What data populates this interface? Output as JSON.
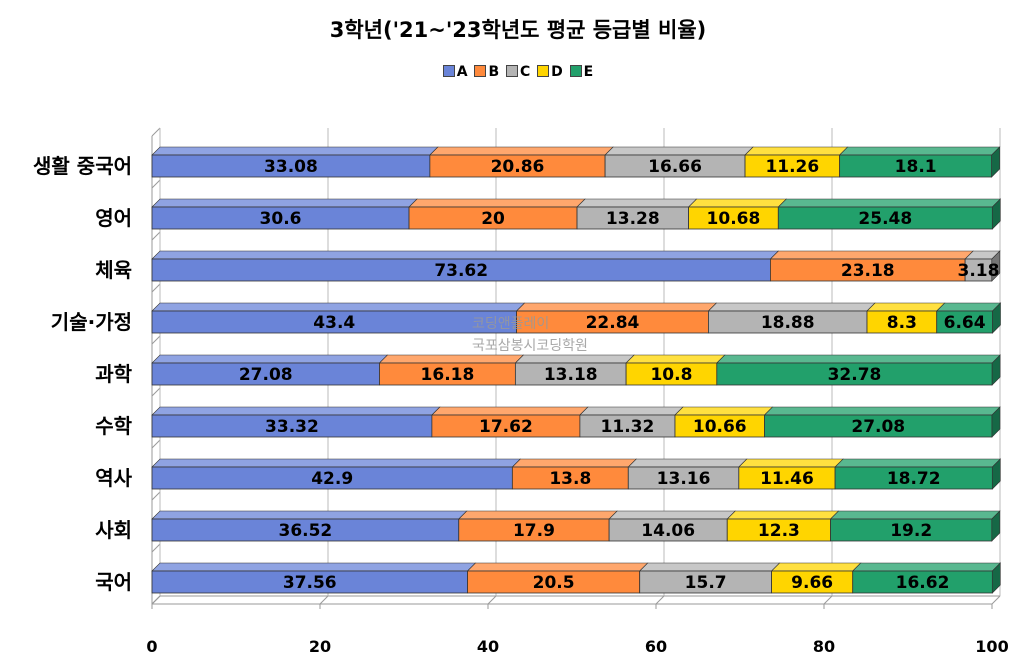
{
  "chart_data": {
    "type": "bar",
    "orientation": "horizontal",
    "stacked": true,
    "title": "3학년('21~'23학년도 평균 등급별 비율)",
    "categories": [
      "생활 중국어",
      "영어",
      "체육",
      "기술·가정",
      "과학",
      "수학",
      "역사",
      "사회",
      "국어"
    ],
    "series": [
      {
        "name": "A",
        "color": "#6a84d8",
        "values": [
          33.08,
          30.6,
          73.62,
          43.4,
          27.08,
          33.32,
          42.9,
          36.52,
          37.56
        ]
      },
      {
        "name": "B",
        "color": "#ff8a3c",
        "values": [
          20.86,
          20,
          23.18,
          22.84,
          16.18,
          17.62,
          13.8,
          17.9,
          20.5
        ]
      },
      {
        "name": "C",
        "color": "#b4b4b4",
        "values": [
          16.66,
          13.28,
          3.18,
          18.88,
          13.18,
          11.32,
          13.16,
          14.06,
          15.7
        ]
      },
      {
        "name": "D",
        "color": "#ffd500",
        "values": [
          11.26,
          10.68,
          0,
          8.3,
          10.8,
          10.66,
          11.46,
          12.3,
          9.66
        ]
      },
      {
        "name": "E",
        "color": "#22a06b",
        "values": [
          18.1,
          25.48,
          0,
          6.64,
          32.78,
          27.08,
          18.72,
          19.2,
          16.62
        ]
      }
    ],
    "xlim": [
      0,
      100
    ],
    "xticks": [
      "0",
      "20",
      "40",
      "60",
      "80",
      "100"
    ],
    "legend": "top-center",
    "grid": true
  },
  "watermark": {
    "line1": "코딩앤플레이",
    "line2": "국포삼봉시코딩학원"
  }
}
